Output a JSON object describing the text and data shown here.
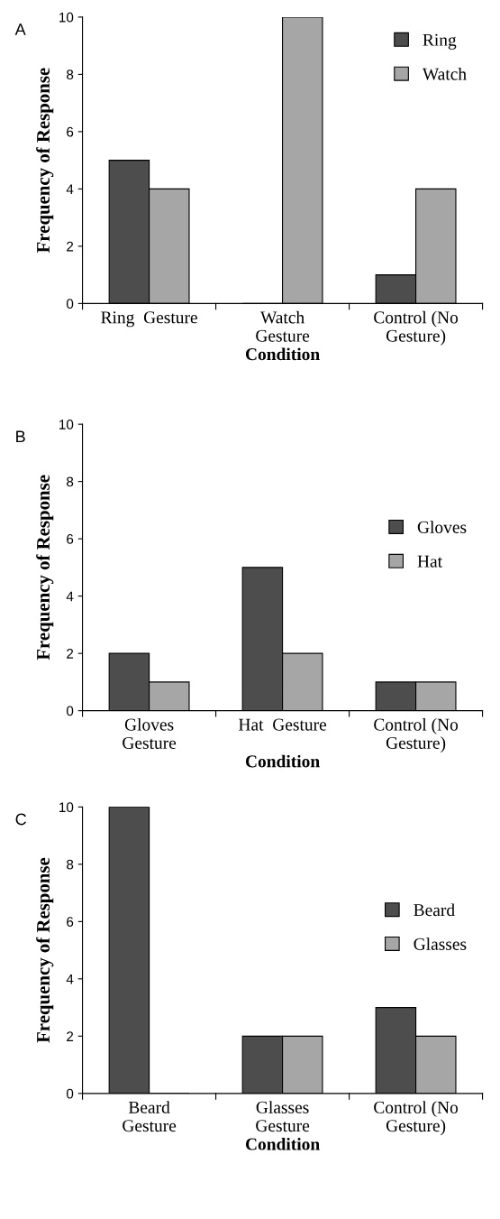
{
  "chart_data": [
    {
      "type": "bar",
      "title": "A",
      "xlabel": "Condition",
      "ylabel": "Frequency of Response",
      "categories": [
        "Ring  Gesture",
        "Watch\nGesture",
        "Control (No\nGesture)"
      ],
      "series": [
        {
          "name": "Ring",
          "color": "#4d4d4d",
          "values": [
            5,
            0,
            1
          ]
        },
        {
          "name": "Watch",
          "color": "#a6a6a6",
          "values": [
            4,
            10,
            4
          ]
        }
      ],
      "ylim": [
        0,
        10
      ],
      "yticks": [
        0,
        2,
        4,
        6,
        8,
        10
      ],
      "legend": "top right",
      "grid": false
    },
    {
      "type": "bar",
      "title": "B",
      "xlabel": "Condition",
      "ylabel": "Frequency of Response",
      "categories": [
        "Gloves\nGesture",
        "Hat  Gesture",
        "Control (No\nGesture)"
      ],
      "series": [
        {
          "name": "Gloves",
          "color": "#4d4d4d",
          "values": [
            2,
            5,
            1
          ]
        },
        {
          "name": "Hat",
          "color": "#a6a6a6",
          "values": [
            1,
            2,
            1
          ]
        }
      ],
      "ylim": [
        0,
        10
      ],
      "yticks": [
        0,
        2,
        4,
        6,
        8,
        10
      ],
      "legend": "right",
      "grid": false
    },
    {
      "type": "bar",
      "title": "C",
      "xlabel": "Condition",
      "ylabel": "Frequency of Response",
      "categories": [
        "Beard\nGesture",
        "Glasses\nGesture",
        "Control (No\nGesture)"
      ],
      "series": [
        {
          "name": "Beard",
          "color": "#4d4d4d",
          "values": [
            10,
            2,
            3
          ]
        },
        {
          "name": "Glasses",
          "color": "#a6a6a6",
          "values": [
            0,
            2,
            2
          ]
        }
      ],
      "ylim": [
        0,
        10
      ],
      "yticks": [
        0,
        2,
        4,
        6,
        8,
        10
      ],
      "legend": "right",
      "grid": false
    }
  ]
}
